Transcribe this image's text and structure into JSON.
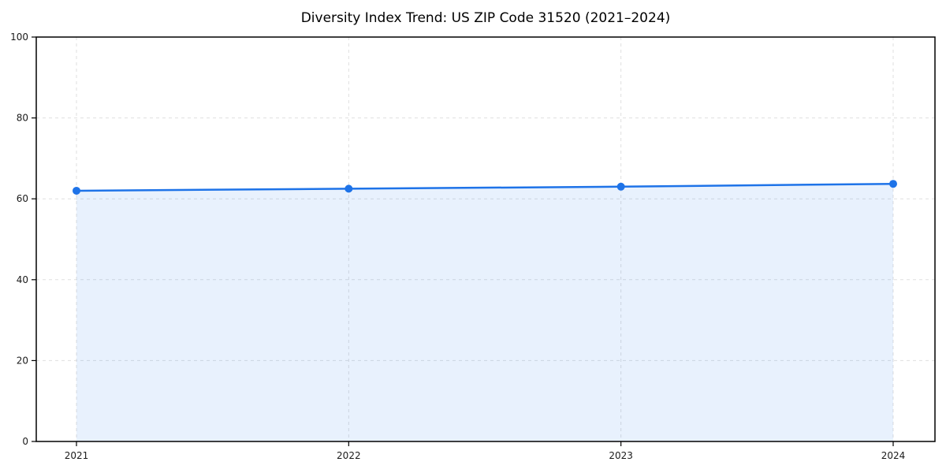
{
  "chart_data": {
    "type": "area",
    "title": "Diversity Index Trend: US ZIP Code 31520 (2021–2024)",
    "x": [
      2021,
      2022,
      2023,
      2024
    ],
    "xtick_labels": [
      "2021",
      "2022",
      "2023",
      "2024"
    ],
    "series": [
      {
        "name": "Diversity Index",
        "values": [
          62.0,
          62.5,
          63.0,
          63.7
        ]
      }
    ],
    "xlabel": "",
    "ylabel": "",
    "ylim": [
      0,
      100
    ],
    "yticks": [
      0,
      20,
      40,
      60,
      80,
      100
    ],
    "grid": true,
    "grid_style": "dashed",
    "legend": "none",
    "marker": "circle",
    "colors": {
      "line": "#1e73e8",
      "marker": "#1e73e8",
      "area_fill": "rgba(30,115,232,0.10)",
      "grid": "#dfdfdf",
      "axis": "#000000",
      "title_text": "#000000",
      "tick_text": "#1a1a1a",
      "background": "#ffffff"
    }
  }
}
